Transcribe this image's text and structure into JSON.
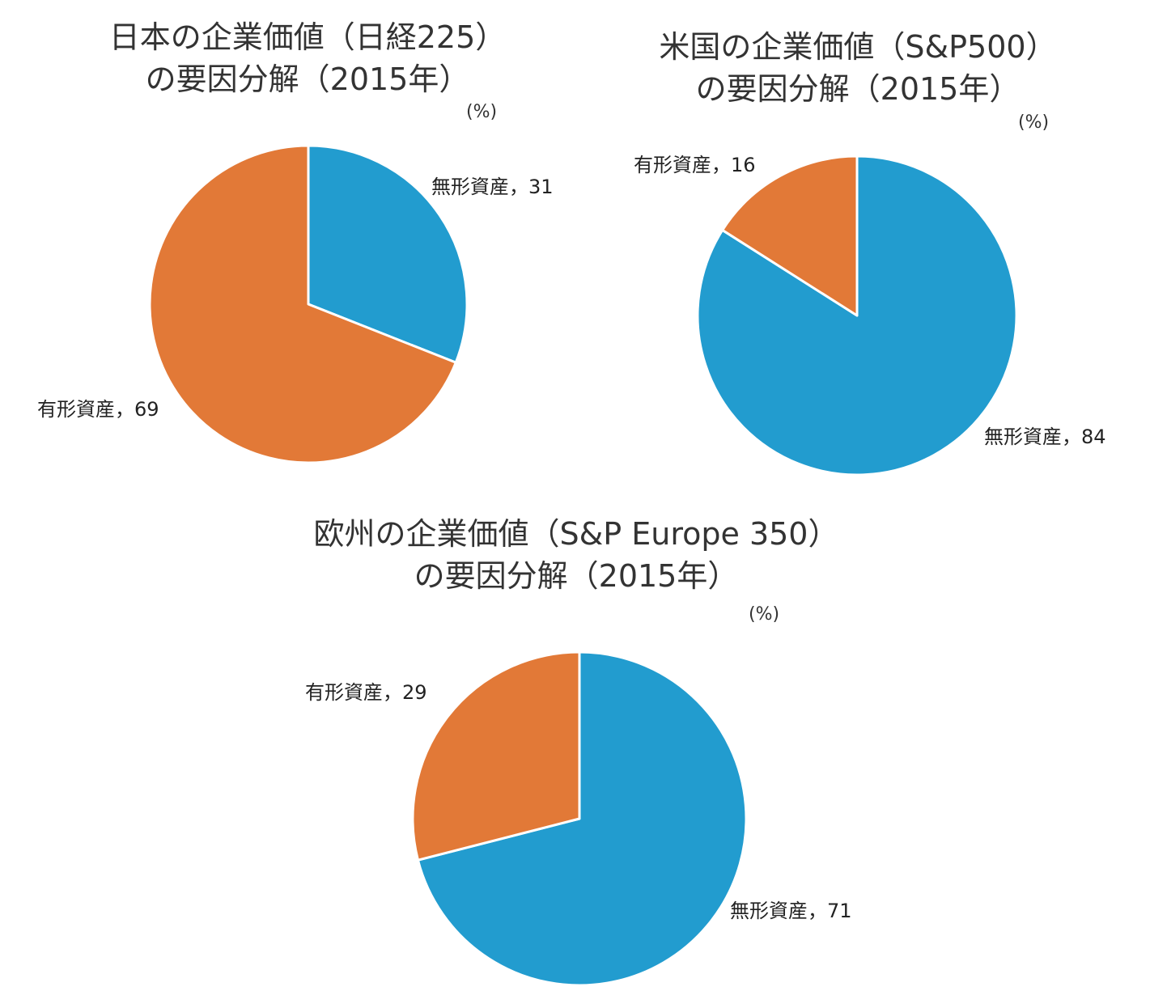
{
  "colors": {
    "intangible": "#229CCF",
    "tangible": "#E27937"
  },
  "chart_data": [
    {
      "type": "pie",
      "title": [
        "日本の企業価値（日経225）",
        "の要因分解（2015年）"
      ],
      "unit": "(%)",
      "slices": [
        {
          "label": "無形資産，31",
          "name": "無形資産",
          "value": 31,
          "color_key": "intangible"
        },
        {
          "label": "有形資産，69",
          "name": "有形資産",
          "value": 69,
          "color_key": "tangible"
        }
      ]
    },
    {
      "type": "pie",
      "title": [
        "米国の企業価値（S&P500）",
        "の要因分解（2015年）"
      ],
      "unit": "(%)",
      "slices": [
        {
          "label": "無形資産，84",
          "name": "無形資産",
          "value": 84,
          "color_key": "intangible"
        },
        {
          "label": "有形資産，16",
          "name": "有形資産",
          "value": 16,
          "color_key": "tangible"
        }
      ]
    },
    {
      "type": "pie",
      "title": [
        "欧州の企業価値（S&P Europe 350）",
        "の要因分解（2015年）"
      ],
      "unit": "(%)",
      "slices": [
        {
          "label": "無形資産，71",
          "name": "無形資産",
          "value": 71,
          "color_key": "intangible"
        },
        {
          "label": "有形資産，29",
          "name": "有形資産",
          "value": 29,
          "color_key": "tangible"
        }
      ]
    }
  ]
}
